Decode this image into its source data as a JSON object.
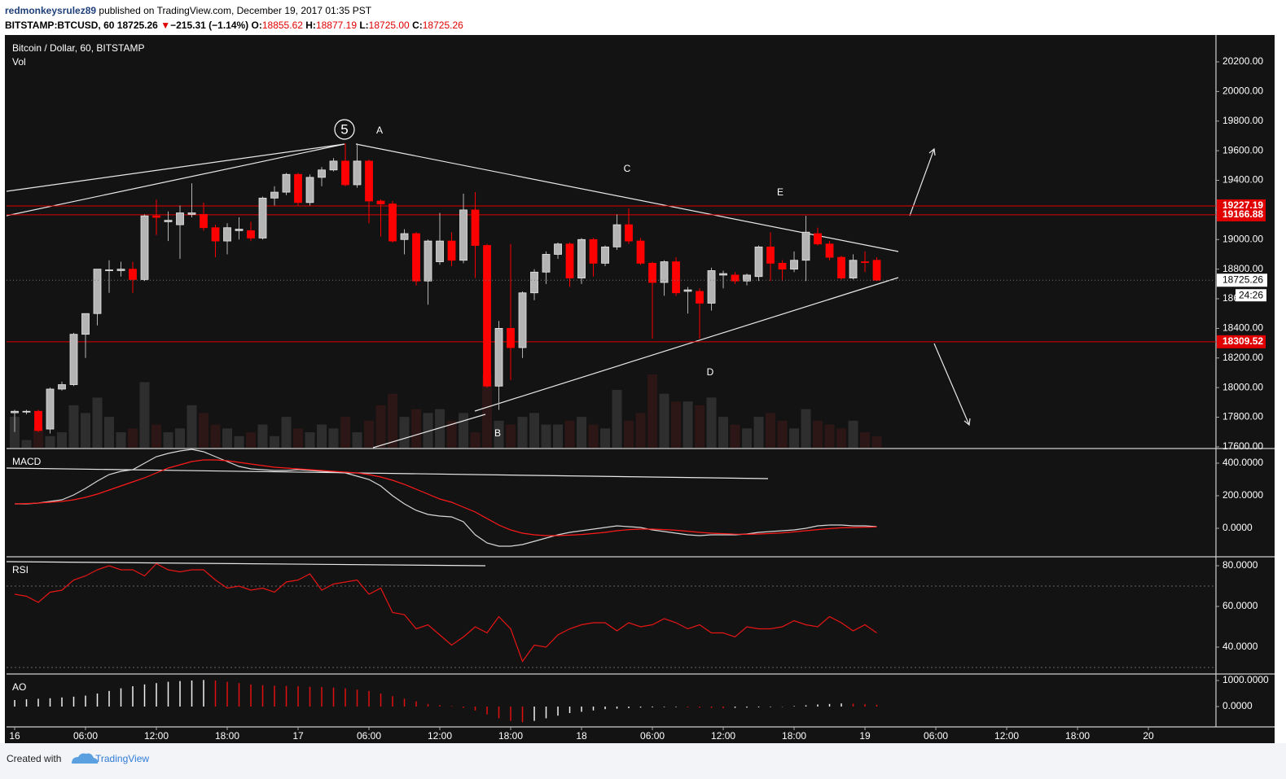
{
  "header": {
    "author": "redmonkeysrulez89",
    "published": "published on TradingView.com, December 19, 2017 01:35 PST",
    "symbol": "BITSTAMP:BTCUSD, 60",
    "last": "18725.26",
    "arrow": "▼",
    "change": "−215.31 (−1.14%)",
    "ohlc": [
      {
        "label": "O:",
        "value": "18855.62"
      },
      {
        "label": "H:",
        "value": "18877.19"
      },
      {
        "label": "L:",
        "value": "18725.00"
      },
      {
        "label": "C:",
        "value": "18725.26"
      }
    ]
  },
  "footer": {
    "created": "Created with",
    "brand": "TradingView"
  },
  "chart_data": [
    {
      "type": "candlestick",
      "title": "Bitcoin / Dollar, 60, BITSTAMP",
      "volume_label": "Vol",
      "x": [
        0,
        1,
        2,
        3,
        4,
        5,
        6,
        7,
        8,
        9,
        10,
        11,
        12,
        13,
        14,
        15,
        16,
        17,
        18,
        19,
        20,
        21,
        22,
        23,
        24,
        25,
        26,
        27,
        28,
        29,
        30,
        31,
        32,
        33,
        34,
        35,
        36,
        37,
        38,
        39,
        40,
        41,
        42,
        43,
        44,
        45,
        46,
        47,
        48,
        49,
        50,
        51,
        52,
        53,
        54,
        55,
        56,
        57,
        58,
        59,
        60,
        61,
        62,
        63,
        64,
        65,
        66,
        67,
        68,
        69,
        70,
        71,
        72,
        73
      ],
      "open": [
        17830,
        17835,
        17840,
        17720,
        17990,
        18020,
        18360,
        18500,
        18790,
        18790,
        18800,
        18730,
        19160,
        19120,
        19100,
        19170,
        19170,
        19080,
        18990,
        19060,
        19060,
        19010,
        19280,
        19320,
        19440,
        19250,
        19420,
        19470,
        19530,
        19370,
        19530,
        19260,
        19240,
        19000,
        19040,
        18720,
        18850,
        18990,
        18860,
        19200,
        18960,
        18010,
        18400,
        18270,
        18640,
        18780,
        18900,
        18970,
        18740,
        19000,
        18840,
        18950,
        19100,
        18990,
        18840,
        18710,
        18850,
        18650,
        18650,
        18570,
        18760,
        18760,
        18720,
        18750,
        18950,
        18840,
        18800,
        18860,
        19040,
        18970,
        18880,
        18740,
        18850,
        18860
      ],
      "high": [
        17850,
        17850,
        17850,
        18000,
        18040,
        18370,
        18500,
        18800,
        18860,
        18850,
        18850,
        19170,
        19270,
        19190,
        19230,
        19380,
        19250,
        19100,
        19110,
        19150,
        19120,
        19290,
        19360,
        19450,
        19450,
        19440,
        19490,
        19550,
        19650,
        19650,
        19540,
        19270,
        19260,
        19070,
        19050,
        19000,
        19180,
        19050,
        19310,
        19320,
        18970,
        18450,
        18970,
        18650,
        18800,
        18920,
        18980,
        18980,
        19010,
        19010,
        18960,
        19170,
        19210,
        19010,
        18850,
        18860,
        18880,
        18680,
        18670,
        18810,
        18790,
        18780,
        18770,
        18960,
        19050,
        18860,
        18920,
        19160,
        19080,
        18990,
        18890,
        18900,
        18920,
        18880
      ],
      "low": [
        17700,
        17820,
        17700,
        17690,
        17980,
        18010,
        18200,
        18420,
        18640,
        18750,
        18640,
        18720,
        19030,
        18990,
        18870,
        19150,
        19060,
        18880,
        18900,
        19000,
        18990,
        19000,
        19230,
        19300,
        19230,
        19230,
        19360,
        19460,
        19360,
        19350,
        19110,
        19020,
        18980,
        18900,
        18690,
        18560,
        18830,
        18820,
        18840,
        18740,
        18000,
        17850,
        18050,
        18200,
        18590,
        18700,
        18870,
        18680,
        18700,
        18750,
        18820,
        18930,
        18970,
        18830,
        18330,
        18620,
        18620,
        18500,
        18330,
        18520,
        18670,
        18700,
        18690,
        18720,
        18720,
        18720,
        18780,
        18720,
        18960,
        18860,
        18730,
        18730,
        18780,
        18720
      ],
      "close": [
        17840,
        17840,
        17710,
        17990,
        18020,
        18360,
        18500,
        18800,
        18795,
        18800,
        18730,
        19160,
        19150,
        19130,
        19180,
        19180,
        19080,
        18990,
        19080,
        19070,
        19010,
        19280,
        19320,
        19440,
        19250,
        19420,
        19470,
        19530,
        19370,
        19530,
        19260,
        19240,
        18990,
        19040,
        18720,
        18990,
        18990,
        18860,
        19200,
        18960,
        18010,
        18400,
        18270,
        18640,
        18780,
        18900,
        18970,
        18740,
        19000,
        18840,
        18950,
        19100,
        18990,
        18840,
        18710,
        18850,
        18640,
        18660,
        18570,
        18790,
        18770,
        18720,
        18760,
        18950,
        18840,
        18800,
        18860,
        19050,
        18970,
        18880,
        18740,
        18860,
        18845,
        18725
      ],
      "volume": [
        40,
        10,
        25,
        15,
        20,
        55,
        45,
        65,
        40,
        20,
        25,
        85,
        30,
        20,
        25,
        55,
        45,
        30,
        25,
        15,
        20,
        30,
        15,
        40,
        25,
        20,
        30,
        25,
        40,
        20,
        35,
        55,
        70,
        40,
        50,
        45,
        50,
        35,
        45,
        20,
        95,
        35,
        30,
        40,
        45,
        30,
        30,
        35,
        40,
        30,
        25,
        75,
        35,
        45,
        95,
        70,
        60,
        60,
        55,
        65,
        40,
        30,
        25,
        40,
        45,
        35,
        25,
        50,
        35,
        30,
        25,
        35,
        20,
        15
      ],
      "up_color": "#b4b4b4",
      "down_color": "#ff0000",
      "ylim": [
        17594,
        20376
      ],
      "yticks": [
        {
          "value": 17600,
          "label": "17600.00"
        },
        {
          "value": 17800,
          "label": "17800.00"
        },
        {
          "value": 18000,
          "label": "18000.00"
        },
        {
          "value": 18200,
          "label": "18200.00"
        },
        {
          "value": 18400,
          "label": "18400.00"
        },
        {
          "value": 18600,
          "label": "18600.00"
        },
        {
          "value": 18800,
          "label": "18800.00"
        },
        {
          "value": 19000,
          "label": "19000.00"
        },
        {
          "value": 19200,
          "label": "19200.00"
        },
        {
          "value": 19400,
          "label": "19400.00"
        },
        {
          "value": 19600,
          "label": "19600.00"
        },
        {
          "value": 19800,
          "label": "19800.00"
        },
        {
          "value": 20000,
          "label": "20000.00"
        },
        {
          "value": 20200,
          "label": "20200.00"
        }
      ],
      "price_lines": [
        19227.19,
        19166.88,
        18309.52
      ],
      "last_price": 18725.26,
      "countdown": "24:26",
      "xlim": [
        -0.69,
        101.72
      ],
      "xticks": [
        {
          "value": 0,
          "label": "16"
        },
        {
          "value": 6,
          "label": "06:00"
        },
        {
          "value": 12,
          "label": "12:00"
        },
        {
          "value": 18,
          "label": "18:00"
        },
        {
          "value": 24,
          "label": "17"
        },
        {
          "value": 30,
          "label": "06:00"
        },
        {
          "value": 36,
          "label": "12:00"
        },
        {
          "value": 42,
          "label": "18:00"
        },
        {
          "value": 48,
          "label": "18"
        },
        {
          "value": 54,
          "label": "06:00"
        },
        {
          "value": 60,
          "label": "12:00"
        },
        {
          "value": 66,
          "label": "18:00"
        },
        {
          "value": 72,
          "label": "19"
        },
        {
          "value": 78,
          "label": "06:00"
        },
        {
          "value": 84,
          "label": "12:00"
        },
        {
          "value": 90,
          "label": "18:00"
        },
        {
          "value": 96,
          "label": "20"
        }
      ],
      "annotations": [
        "5",
        "A",
        "B",
        "C",
        "D",
        "E"
      ]
    },
    {
      "type": "line",
      "title": "MACD",
      "ylim": [
        -170,
        485
      ],
      "yticks": [
        {
          "value": 0,
          "label": "0.0000"
        },
        {
          "value": 200,
          "label": "200.0000"
        },
        {
          "value": 400,
          "label": "400.0000"
        }
      ],
      "series": [
        {
          "color": "#d8d8d8",
          "values": [
            150,
            150,
            155,
            165,
            175,
            205,
            245,
            290,
            330,
            350,
            360,
            400,
            440,
            460,
            475,
            485,
            470,
            440,
            410,
            380,
            365,
            360,
            355,
            355,
            360,
            355,
            350,
            345,
            340,
            320,
            300,
            260,
            200,
            150,
            110,
            85,
            75,
            70,
            40,
            -40,
            -90,
            -110,
            -110,
            -100,
            -80,
            -60,
            -40,
            -25,
            -15,
            -5,
            5,
            15,
            10,
            5,
            -10,
            -20,
            -30,
            -40,
            -45,
            -40,
            -40,
            -40,
            -35,
            -25,
            -20,
            -15,
            -10,
            0,
            15,
            20,
            20,
            15,
            15,
            10
          ]
        },
        {
          "color": "#ff1a1a",
          "values": [
            150,
            152,
            155,
            160,
            165,
            175,
            190,
            210,
            235,
            260,
            285,
            310,
            340,
            370,
            390,
            410,
            420,
            420,
            415,
            405,
            395,
            385,
            375,
            370,
            365,
            360,
            355,
            350,
            345,
            340,
            330,
            315,
            295,
            270,
            240,
            210,
            180,
            160,
            130,
            100,
            60,
            20,
            -10,
            -30,
            -40,
            -45,
            -45,
            -42,
            -38,
            -32,
            -25,
            -15,
            -8,
            -5,
            -5,
            -8,
            -12,
            -18,
            -25,
            -30,
            -33,
            -36,
            -37,
            -35,
            -32,
            -28,
            -22,
            -15,
            -8,
            -2,
            3,
            5,
            7,
            8
          ]
        }
      ]
    },
    {
      "type": "line",
      "title": "RSI",
      "ylim": [
        27.2,
        84
      ],
      "levels": [
        70,
        30
      ],
      "yticks": [
        {
          "value": 40,
          "label": "40.0000"
        },
        {
          "value": 60,
          "label": "60.0000"
        },
        {
          "value": 80,
          "label": "80.0000"
        }
      ],
      "series": [
        {
          "color": "#e61515",
          "values": [
            66,
            65,
            62,
            67,
            68,
            73,
            75,
            78,
            80,
            78,
            78,
            75,
            81,
            78,
            77,
            78,
            78,
            73,
            69,
            70,
            68,
            69,
            67,
            72,
            73,
            76,
            68,
            71,
            72,
            73,
            66,
            69,
            57,
            56,
            49,
            51,
            46,
            41,
            45,
            50,
            47,
            55,
            49,
            33,
            41,
            40,
            46,
            49,
            51,
            52,
            52,
            48,
            52,
            50,
            51,
            54,
            52,
            49,
            51,
            47,
            47,
            45,
            50,
            49,
            49,
            50,
            53,
            51,
            50,
            55,
            52,
            48,
            51,
            47
          ]
        }
      ]
    },
    {
      "type": "bar",
      "title": "AO",
      "ylim": [
        -750,
        1219
      ],
      "up_color": "#f0f0f0",
      "down_color": "#e01010",
      "yticks": [
        {
          "value": 0,
          "label": "0.0000"
        },
        {
          "value": 1000,
          "label": "1000.0000"
        }
      ],
      "values": [
        250,
        280,
        300,
        320,
        350,
        380,
        420,
        500,
        600,
        700,
        780,
        850,
        900,
        950,
        980,
        1000,
        1020,
        1000,
        950,
        900,
        850,
        820,
        800,
        790,
        780,
        760,
        750,
        730,
        700,
        650,
        600,
        500,
        400,
        300,
        200,
        100,
        50,
        20,
        -50,
        -150,
        -300,
        -450,
        -550,
        -600,
        -550,
        -450,
        -350,
        -250,
        -200,
        -150,
        -100,
        -80,
        -60,
        -40,
        -30,
        -20,
        -20,
        -30,
        -40,
        -50,
        -60,
        -50,
        -40,
        -30,
        -20,
        -10,
        20,
        50,
        80,
        100,
        120,
        110,
        90,
        70
      ]
    }
  ]
}
